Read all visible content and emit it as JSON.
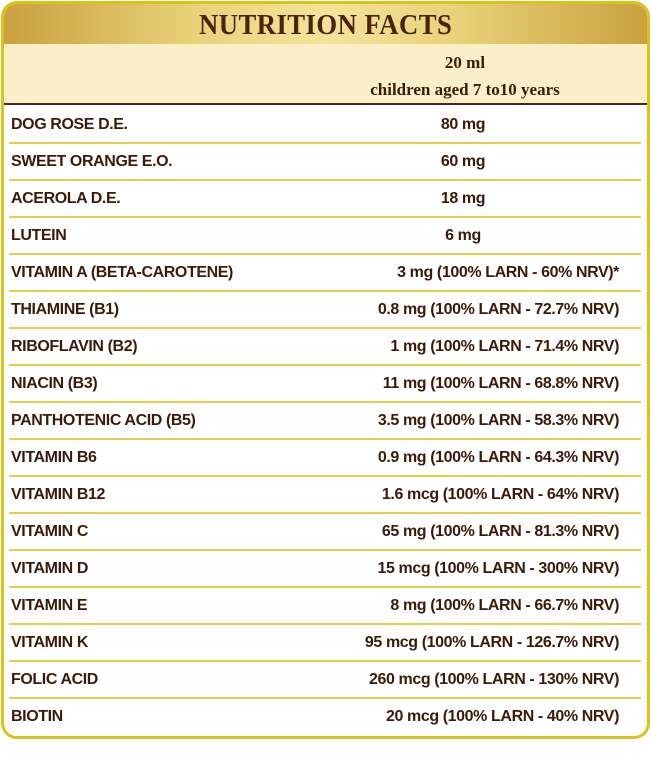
{
  "title": "NUTRITION FACTS",
  "serving": {
    "amount": "20 ml",
    "audience": "children aged 7 to10 years"
  },
  "rows": [
    {
      "name": "DOG ROSE D.E.",
      "value": "80 mg",
      "align": "c"
    },
    {
      "name": "SWEET ORANGE E.O.",
      "value": "60 mg",
      "align": "c"
    },
    {
      "name": "ACEROLA D.E.",
      "value": "18 mg",
      "align": "c"
    },
    {
      "name": "LUTEIN",
      "value": "6 mg",
      "align": "c"
    },
    {
      "name": "VITAMIN A (BETA-CAROTENE)",
      "value": "3 mg (100% LARN - 60% NRV)*",
      "align": "r"
    },
    {
      "name": "THIAMINE (B1)",
      "value": "0.8 mg (100% LARN - 72.7% NRV)",
      "align": "r"
    },
    {
      "name": "RIBOFLAVIN (B2)",
      "value": "1 mg (100% LARN - 71.4% NRV)",
      "align": "r"
    },
    {
      "name": "NIACIN (B3)",
      "value": "11 mg (100% LARN - 68.8% NRV)",
      "align": "r"
    },
    {
      "name": "PANTHOTENIC ACID (B5)",
      "value": "3.5 mg (100% LARN - 58.3% NRV)",
      "align": "r"
    },
    {
      "name": "VITAMIN B6",
      "value": "0.9 mg (100% LARN - 64.3% NRV)",
      "align": "r"
    },
    {
      "name": "VITAMIN B12",
      "value": "1.6 mcg (100% LARN - 64% NRV)",
      "align": "r"
    },
    {
      "name": "VITAMIN C",
      "value": "65 mg (100% LARN - 81.3% NRV)",
      "align": "r"
    },
    {
      "name": "VITAMIN D",
      "value": "15 mcg (100% LARN - 300% NRV)",
      "align": "r"
    },
    {
      "name": "VITAMIN E",
      "value": "8 mg (100% LARN - 66.7% NRV)",
      "align": "r"
    },
    {
      "name": "VITAMIN K",
      "value": "95 mcg (100% LARN - 126.7% NRV)",
      "align": "r"
    },
    {
      "name": "FOLIC ACID",
      "value": "260 mcg (100% LARN - 130% NRV)",
      "align": "r"
    },
    {
      "name": "BIOTIN",
      "value": "20 mcg (100% LARN - 40% NRV)",
      "align": "r"
    }
  ]
}
